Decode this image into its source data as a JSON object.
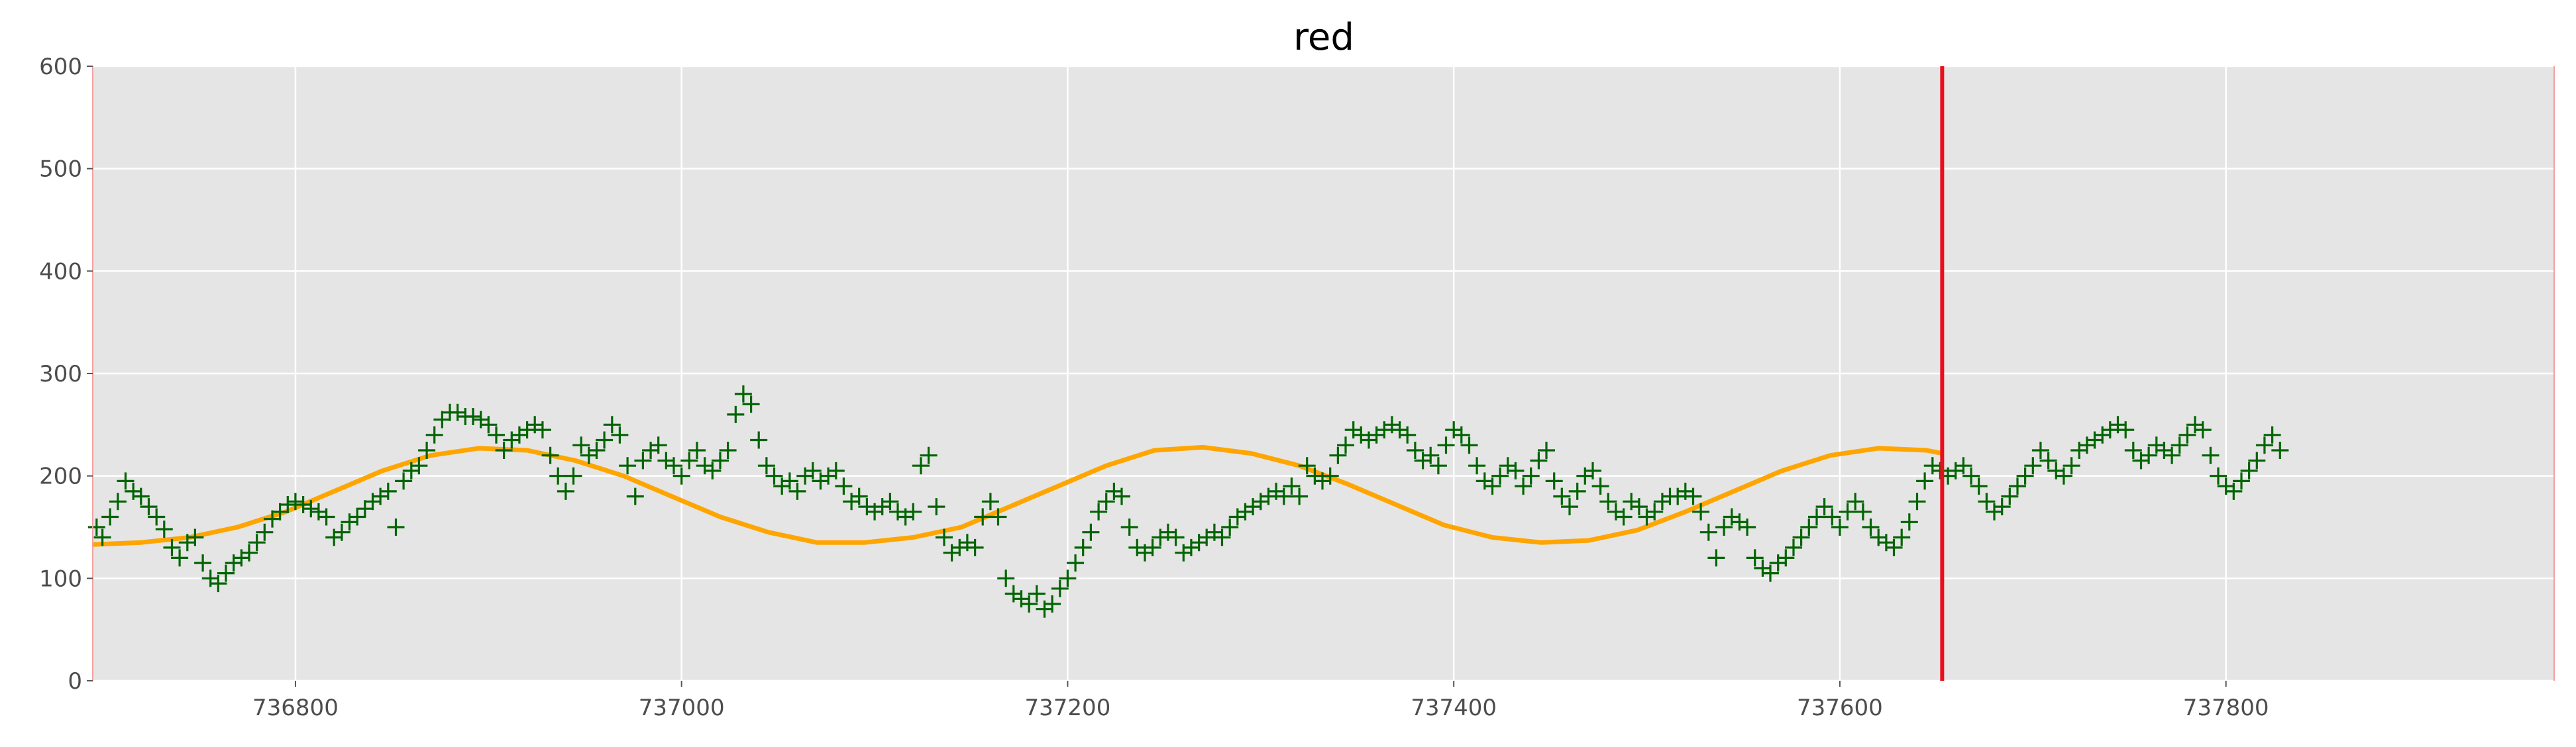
{
  "chart_data": {
    "type": "scatter",
    "title": "red",
    "xlabel": "",
    "ylabel": "",
    "xlim": [
      736695,
      737970
    ],
    "ylim": [
      0,
      600
    ],
    "x_ticks": [
      736800,
      737000,
      737200,
      737400,
      737600,
      737800
    ],
    "y_ticks": [
      0,
      100,
      200,
      300,
      400,
      500,
      600
    ],
    "grid": true,
    "legend": "none",
    "changepoint_x": 737653,
    "colors": {
      "background": "#e5e5e5",
      "grid": "#ffffff",
      "points": "#006400",
      "fit": "#ffa500",
      "changepoint": "#e8101a"
    },
    "series": [
      {
        "marker": "plus",
        "points": [
          [
            736697,
            150
          ],
          [
            736700,
            140
          ],
          [
            736704,
            160
          ],
          [
            736708,
            175
          ],
          [
            736712,
            195
          ],
          [
            736716,
            185
          ],
          [
            736720,
            180
          ],
          [
            736724,
            170
          ],
          [
            736728,
            160
          ],
          [
            736732,
            148
          ],
          [
            736736,
            130
          ],
          [
            736740,
            120
          ],
          [
            736744,
            135
          ],
          [
            736748,
            140
          ],
          [
            736752,
            115
          ],
          [
            736756,
            100
          ],
          [
            736760,
            95
          ],
          [
            736764,
            105
          ],
          [
            736768,
            115
          ],
          [
            736772,
            120
          ],
          [
            736776,
            125
          ],
          [
            736780,
            135
          ],
          [
            736784,
            145
          ],
          [
            736788,
            158
          ],
          [
            736792,
            165
          ],
          [
            736796,
            172
          ],
          [
            736800,
            175
          ],
          [
            736804,
            172
          ],
          [
            736808,
            168
          ],
          [
            736812,
            165
          ],
          [
            736816,
            160
          ],
          [
            736820,
            140
          ],
          [
            736824,
            145
          ],
          [
            736828,
            155
          ],
          [
            736832,
            160
          ],
          [
            736836,
            168
          ],
          [
            736840,
            175
          ],
          [
            736844,
            180
          ],
          [
            736848,
            185
          ],
          [
            736852,
            150
          ],
          [
            736856,
            195
          ],
          [
            736860,
            205
          ],
          [
            736864,
            210
          ],
          [
            736868,
            225
          ],
          [
            736872,
            240
          ],
          [
            736876,
            255
          ],
          [
            736880,
            262
          ],
          [
            736884,
            262
          ],
          [
            736888,
            258
          ],
          [
            736892,
            258
          ],
          [
            736896,
            255
          ],
          [
            736900,
            250
          ],
          [
            736904,
            240
          ],
          [
            736908,
            225
          ],
          [
            736912,
            235
          ],
          [
            736916,
            240
          ],
          [
            736920,
            245
          ],
          [
            736924,
            250
          ],
          [
            736928,
            245
          ],
          [
            736932,
            220
          ],
          [
            736936,
            200
          ],
          [
            736940,
            185
          ],
          [
            736944,
            200
          ],
          [
            736948,
            230
          ],
          [
            736952,
            220
          ],
          [
            736956,
            225
          ],
          [
            736960,
            235
          ],
          [
            736964,
            250
          ],
          [
            736968,
            240
          ],
          [
            736972,
            210
          ],
          [
            736976,
            180
          ],
          [
            736980,
            215
          ],
          [
            736984,
            225
          ],
          [
            736988,
            230
          ],
          [
            736992,
            215
          ],
          [
            736996,
            210
          ],
          [
            737000,
            200
          ],
          [
            737004,
            215
          ],
          [
            737008,
            225
          ],
          [
            737012,
            210
          ],
          [
            737016,
            205
          ],
          [
            737020,
            215
          ],
          [
            737024,
            225
          ],
          [
            737028,
            260
          ],
          [
            737032,
            280
          ],
          [
            737036,
            270
          ],
          [
            737040,
            235
          ],
          [
            737044,
            210
          ],
          [
            737048,
            200
          ],
          [
            737052,
            190
          ],
          [
            737056,
            195
          ],
          [
            737060,
            185
          ],
          [
            737064,
            200
          ],
          [
            737068,
            205
          ],
          [
            737072,
            195
          ],
          [
            737076,
            200
          ],
          [
            737080,
            205
          ],
          [
            737084,
            190
          ],
          [
            737088,
            175
          ],
          [
            737092,
            180
          ],
          [
            737096,
            170
          ],
          [
            737100,
            165
          ],
          [
            737104,
            170
          ],
          [
            737108,
            175
          ],
          [
            737112,
            165
          ],
          [
            737116,
            160
          ],
          [
            737120,
            165
          ],
          [
            737124,
            210
          ],
          [
            737128,
            220
          ],
          [
            737132,
            170
          ],
          [
            737136,
            140
          ],
          [
            737140,
            125
          ],
          [
            737144,
            130
          ],
          [
            737148,
            135
          ],
          [
            737152,
            130
          ],
          [
            737156,
            160
          ],
          [
            737160,
            175
          ],
          [
            737164,
            160
          ],
          [
            737168,
            100
          ],
          [
            737172,
            85
          ],
          [
            737176,
            80
          ],
          [
            737180,
            75
          ],
          [
            737184,
            85
          ],
          [
            737188,
            70
          ],
          [
            737192,
            75
          ],
          [
            737196,
            90
          ],
          [
            737200,
            100
          ],
          [
            737204,
            115
          ],
          [
            737208,
            130
          ],
          [
            737212,
            145
          ],
          [
            737216,
            165
          ],
          [
            737220,
            175
          ],
          [
            737224,
            185
          ],
          [
            737228,
            180
          ],
          [
            737232,
            150
          ],
          [
            737236,
            130
          ],
          [
            737240,
            125
          ],
          [
            737244,
            130
          ],
          [
            737248,
            140
          ],
          [
            737252,
            145
          ],
          [
            737256,
            140
          ],
          [
            737260,
            125
          ],
          [
            737264,
            130
          ],
          [
            737268,
            135
          ],
          [
            737272,
            140
          ],
          [
            737276,
            145
          ],
          [
            737280,
            140
          ],
          [
            737284,
            150
          ],
          [
            737288,
            160
          ],
          [
            737292,
            165
          ],
          [
            737296,
            170
          ],
          [
            737300,
            175
          ],
          [
            737304,
            180
          ],
          [
            737308,
            185
          ],
          [
            737312,
            180
          ],
          [
            737316,
            190
          ],
          [
            737320,
            180
          ],
          [
            737324,
            210
          ],
          [
            737328,
            200
          ],
          [
            737332,
            195
          ],
          [
            737336,
            200
          ],
          [
            737340,
            220
          ],
          [
            737344,
            230
          ],
          [
            737348,
            245
          ],
          [
            737352,
            240
          ],
          [
            737356,
            235
          ],
          [
            737360,
            240
          ],
          [
            737364,
            245
          ],
          [
            737368,
            250
          ],
          [
            737372,
            245
          ],
          [
            737376,
            240
          ],
          [
            737380,
            225
          ],
          [
            737384,
            215
          ],
          [
            737388,
            220
          ],
          [
            737392,
            210
          ],
          [
            737396,
            230
          ],
          [
            737400,
            245
          ],
          [
            737404,
            240
          ],
          [
            737408,
            230
          ],
          [
            737412,
            210
          ],
          [
            737416,
            195
          ],
          [
            737420,
            190
          ],
          [
            737424,
            200
          ],
          [
            737428,
            210
          ],
          [
            737432,
            205
          ],
          [
            737436,
            190
          ],
          [
            737440,
            200
          ],
          [
            737444,
            215
          ],
          [
            737448,
            225
          ],
          [
            737452,
            195
          ],
          [
            737456,
            180
          ],
          [
            737460,
            170
          ],
          [
            737464,
            185
          ],
          [
            737468,
            200
          ],
          [
            737472,
            205
          ],
          [
            737476,
            190
          ],
          [
            737480,
            175
          ],
          [
            737484,
            165
          ],
          [
            737488,
            160
          ],
          [
            737492,
            175
          ],
          [
            737496,
            170
          ],
          [
            737500,
            160
          ],
          [
            737504,
            165
          ],
          [
            737508,
            175
          ],
          [
            737512,
            180
          ],
          [
            737516,
            180
          ],
          [
            737520,
            185
          ],
          [
            737524,
            180
          ],
          [
            737528,
            165
          ],
          [
            737532,
            145
          ],
          [
            737536,
            120
          ],
          [
            737540,
            150
          ],
          [
            737544,
            160
          ],
          [
            737548,
            155
          ],
          [
            737552,
            150
          ],
          [
            737556,
            120
          ],
          [
            737560,
            110
          ],
          [
            737564,
            105
          ],
          [
            737568,
            115
          ],
          [
            737572,
            120
          ],
          [
            737576,
            130
          ],
          [
            737580,
            140
          ],
          [
            737584,
            150
          ],
          [
            737588,
            160
          ],
          [
            737592,
            170
          ],
          [
            737596,
            160
          ],
          [
            737600,
            150
          ],
          [
            737604,
            165
          ],
          [
            737608,
            175
          ],
          [
            737612,
            165
          ],
          [
            737616,
            150
          ],
          [
            737620,
            140
          ],
          [
            737624,
            135
          ],
          [
            737628,
            130
          ],
          [
            737632,
            140
          ],
          [
            737636,
            155
          ],
          [
            737640,
            175
          ],
          [
            737644,
            195
          ],
          [
            737648,
            210
          ],
          [
            737652,
            205
          ],
          [
            737656,
            200
          ],
          [
            737660,
            205
          ],
          [
            737664,
            210
          ],
          [
            737668,
            200
          ],
          [
            737672,
            190
          ],
          [
            737676,
            175
          ],
          [
            737680,
            165
          ],
          [
            737684,
            170
          ],
          [
            737688,
            180
          ],
          [
            737692,
            190
          ],
          [
            737696,
            200
          ],
          [
            737700,
            210
          ],
          [
            737704,
            225
          ],
          [
            737708,
            215
          ],
          [
            737712,
            205
          ],
          [
            737716,
            200
          ],
          [
            737720,
            210
          ],
          [
            737724,
            225
          ],
          [
            737728,
            230
          ],
          [
            737732,
            235
          ],
          [
            737736,
            240
          ],
          [
            737740,
            245
          ],
          [
            737744,
            250
          ],
          [
            737748,
            245
          ],
          [
            737752,
            225
          ],
          [
            737756,
            215
          ],
          [
            737760,
            220
          ],
          [
            737764,
            230
          ],
          [
            737768,
            225
          ],
          [
            737772,
            220
          ],
          [
            737776,
            230
          ],
          [
            737780,
            240
          ],
          [
            737784,
            250
          ],
          [
            737788,
            245
          ],
          [
            737792,
            220
          ],
          [
            737796,
            200
          ],
          [
            737800,
            190
          ],
          [
            737804,
            185
          ],
          [
            737808,
            195
          ],
          [
            737812,
            205
          ],
          [
            737816,
            215
          ],
          [
            737820,
            230
          ],
          [
            737824,
            240
          ],
          [
            737828,
            225
          ]
        ]
      }
    ],
    "fit_line": [
      [
        736695,
        133
      ],
      [
        736720,
        135
      ],
      [
        736745,
        140
      ],
      [
        736770,
        150
      ],
      [
        736795,
        165
      ],
      [
        736820,
        185
      ],
      [
        736845,
        205
      ],
      [
        736870,
        220
      ],
      [
        736895,
        227
      ],
      [
        736920,
        225
      ],
      [
        736945,
        215
      ],
      [
        736970,
        200
      ],
      [
        736995,
        180
      ],
      [
        737020,
        160
      ],
      [
        737045,
        145
      ],
      [
        737070,
        135
      ],
      [
        737095,
        135
      ],
      [
        737120,
        140
      ],
      [
        737145,
        150
      ],
      [
        737170,
        170
      ],
      [
        737195,
        190
      ],
      [
        737220,
        210
      ],
      [
        737245,
        225
      ],
      [
        737270,
        228
      ],
      [
        737295,
        222
      ],
      [
        737320,
        210
      ],
      [
        737345,
        192
      ],
      [
        737370,
        172
      ],
      [
        737395,
        152
      ],
      [
        737420,
        140
      ],
      [
        737445,
        135
      ],
      [
        737470,
        137
      ],
      [
        737495,
        147
      ],
      [
        737520,
        165
      ],
      [
        737545,
        185
      ],
      [
        737570,
        205
      ],
      [
        737595,
        220
      ],
      [
        737620,
        227
      ],
      [
        737645,
        225
      ],
      [
        737653,
        222
      ]
    ]
  }
}
